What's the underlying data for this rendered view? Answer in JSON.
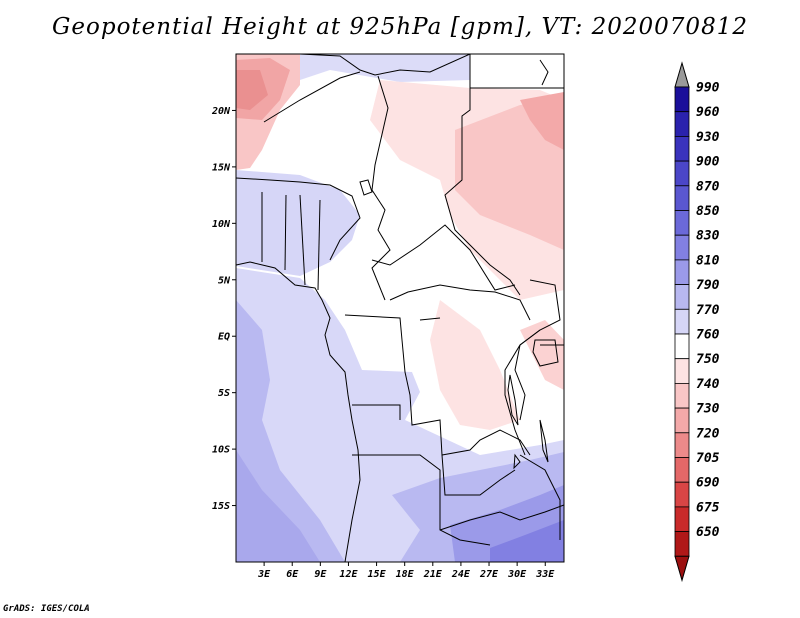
{
  "title": "Geopotential Height at 925hPa [gpm], VT: 2020070812",
  "footer": "GrADS: IGES/COLA",
  "map": {
    "lon_range": [
      0,
      35
    ],
    "lat_range": [
      -20,
      25
    ],
    "lat_ticks": [
      {
        "value": 20,
        "label": "20N"
      },
      {
        "value": 15,
        "label": "15N"
      },
      {
        "value": 10,
        "label": "10N"
      },
      {
        "value": 5,
        "label": "5N"
      },
      {
        "value": 0,
        "label": "EQ"
      },
      {
        "value": -5,
        "label": "5S"
      },
      {
        "value": -10,
        "label": "10S"
      },
      {
        "value": -15,
        "label": "15S"
      }
    ],
    "lon_ticks": [
      {
        "value": 3,
        "label": "3E"
      },
      {
        "value": 6,
        "label": "6E"
      },
      {
        "value": 9,
        "label": "9E"
      },
      {
        "value": 12,
        "label": "12E"
      },
      {
        "value": 15,
        "label": "15E"
      },
      {
        "value": 18,
        "label": "18E"
      },
      {
        "value": 21,
        "label": "21E"
      },
      {
        "value": 24,
        "label": "24E"
      },
      {
        "value": 27,
        "label": "27E"
      },
      {
        "value": 30,
        "label": "30E"
      },
      {
        "value": 33,
        "label": "33E"
      }
    ]
  },
  "colorbar": {
    "levels": [
      "990",
      "960",
      "930",
      "900",
      "870",
      "850",
      "830",
      "810",
      "790",
      "770",
      "760",
      "750",
      "740",
      "730",
      "720",
      "705",
      "690",
      "675",
      "650"
    ],
    "colors": [
      "#1a0f9a",
      "#2a22ad",
      "#3a33bd",
      "#4b46c8",
      "#5a57d0",
      "#6b69d9",
      "#8280e2",
      "#9b9ae9",
      "#b8b8f0",
      "#d6d6f7",
      "#ffffff",
      "#fde3e3",
      "#f9c6c6",
      "#f3a9a9",
      "#ec8a8a",
      "#e46868",
      "#d94545",
      "#c92a2a",
      "#b01818"
    ],
    "top_cap_color": "#9a9a9a",
    "bottom_cap_color": "#9c1010"
  }
}
